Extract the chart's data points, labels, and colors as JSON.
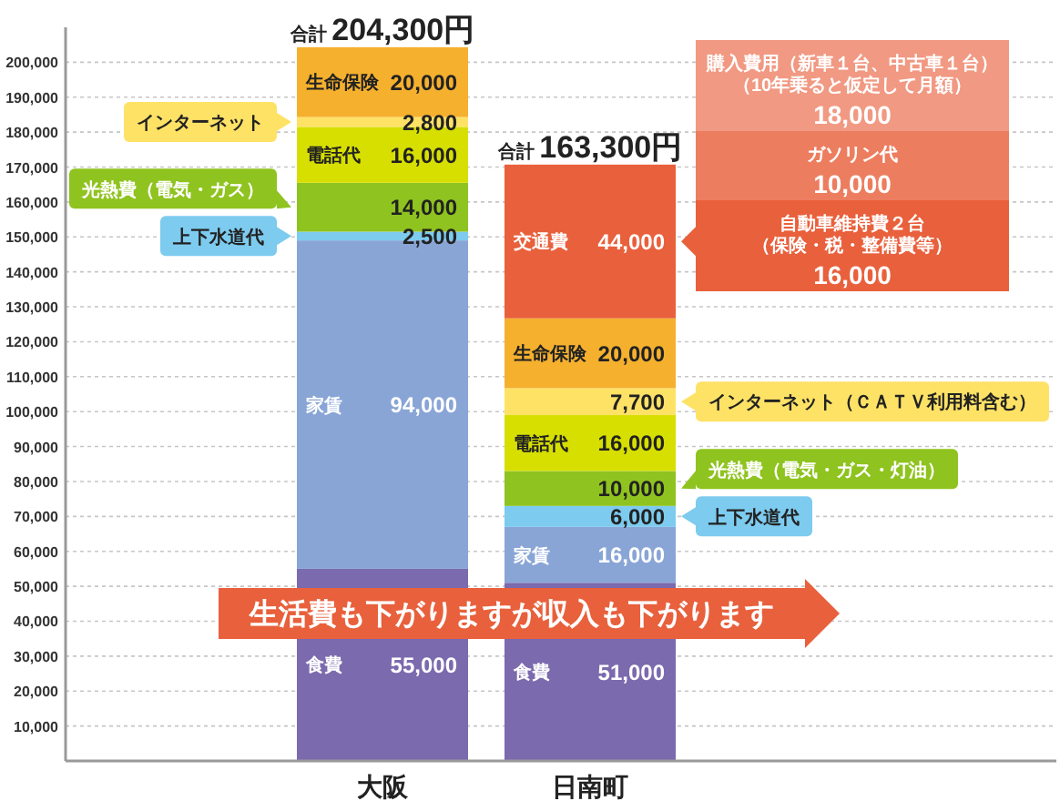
{
  "chart_data": {
    "type": "bar",
    "stacked": true,
    "categories": [
      "大阪",
      "日南町"
    ],
    "series": [
      {
        "name": "食費",
        "color": "#7b6aae",
        "values": [
          55000,
          51000
        ],
        "value_labels": [
          "55,000",
          "51,000"
        ]
      },
      {
        "name": "家賃",
        "color": "#89a5d6",
        "values": [
          94000,
          16000
        ],
        "value_labels": [
          "94,000",
          "16,000"
        ]
      },
      {
        "name": "上下水道代",
        "color": "#7dcbef",
        "values": [
          2500,
          6000
        ],
        "value_labels": [
          "2,500",
          "6,000"
        ]
      },
      {
        "name": "光熱費（電気・ガス）",
        "color": "#8fc31f",
        "values": [
          14000,
          10000
        ],
        "value_labels": [
          "14,000",
          "10,000"
        ]
      },
      {
        "name": "電話代",
        "color": "#d7df01",
        "values": [
          16000,
          16000
        ],
        "value_labels": [
          "16,000",
          "16,000"
        ]
      },
      {
        "name": "インターネット",
        "color": "#fee266",
        "values": [
          2800,
          7700
        ],
        "value_labels": [
          "2,800",
          "7,700"
        ]
      },
      {
        "name": "生命保険",
        "color": "#f5b02e",
        "values": [
          20000,
          20000
        ],
        "value_labels": [
          "20,000",
          "20,000"
        ]
      },
      {
        "name": "交通費",
        "color": "#e9603c",
        "values": [
          null,
          44000
        ],
        "value_labels": [
          null,
          "44,000"
        ]
      }
    ],
    "totals": [
      "合計 204,300円",
      "合計 163,300円"
    ],
    "ylim": [
      0,
      210000
    ],
    "yticks": [
      {
        "value": 10000,
        "label": "10,000"
      },
      {
        "value": 20000,
        "label": "20,000"
      },
      {
        "value": 30000,
        "label": "30,000"
      },
      {
        "value": 40000,
        "label": "40,000"
      },
      {
        "value": 50000,
        "label": "50,000"
      },
      {
        "value": 60000,
        "label": "60,000"
      },
      {
        "value": 70000,
        "label": "70,000"
      },
      {
        "value": 80000,
        "label": "80,000"
      },
      {
        "value": 90000,
        "label": "90,000"
      },
      {
        "value": 100000,
        "label": "100,000"
      },
      {
        "value": 110000,
        "label": "110,000"
      },
      {
        "value": 120000,
        "label": "120,000"
      },
      {
        "value": 130000,
        "label": "130,000"
      },
      {
        "value": 140000,
        "label": "140,000"
      },
      {
        "value": 150000,
        "label": "150,000"
      },
      {
        "value": 160000,
        "label": "160,000"
      },
      {
        "value": 170000,
        "label": "170,000"
      },
      {
        "value": 180000,
        "label": "180,000"
      },
      {
        "value": 190000,
        "label": "190,000"
      },
      {
        "value": 200000,
        "label": "200,000"
      }
    ],
    "grid": "y",
    "legend": "top left",
    "annotations": [
      "生活費も下がりますが収入も下がります",
      "購入費用（新車１台、中古車１台）（10年乗ると仮定して月額）",
      "18,000",
      "ガソリン代",
      "10,000",
      "自動車維持費２台（保険・税・整備費等）",
      "16,000",
      "上下水道代",
      "光熱費（電気・ガス・灯油）",
      "インターネット（ＣＡＴＶ利用料含む）"
    ]
  }
}
